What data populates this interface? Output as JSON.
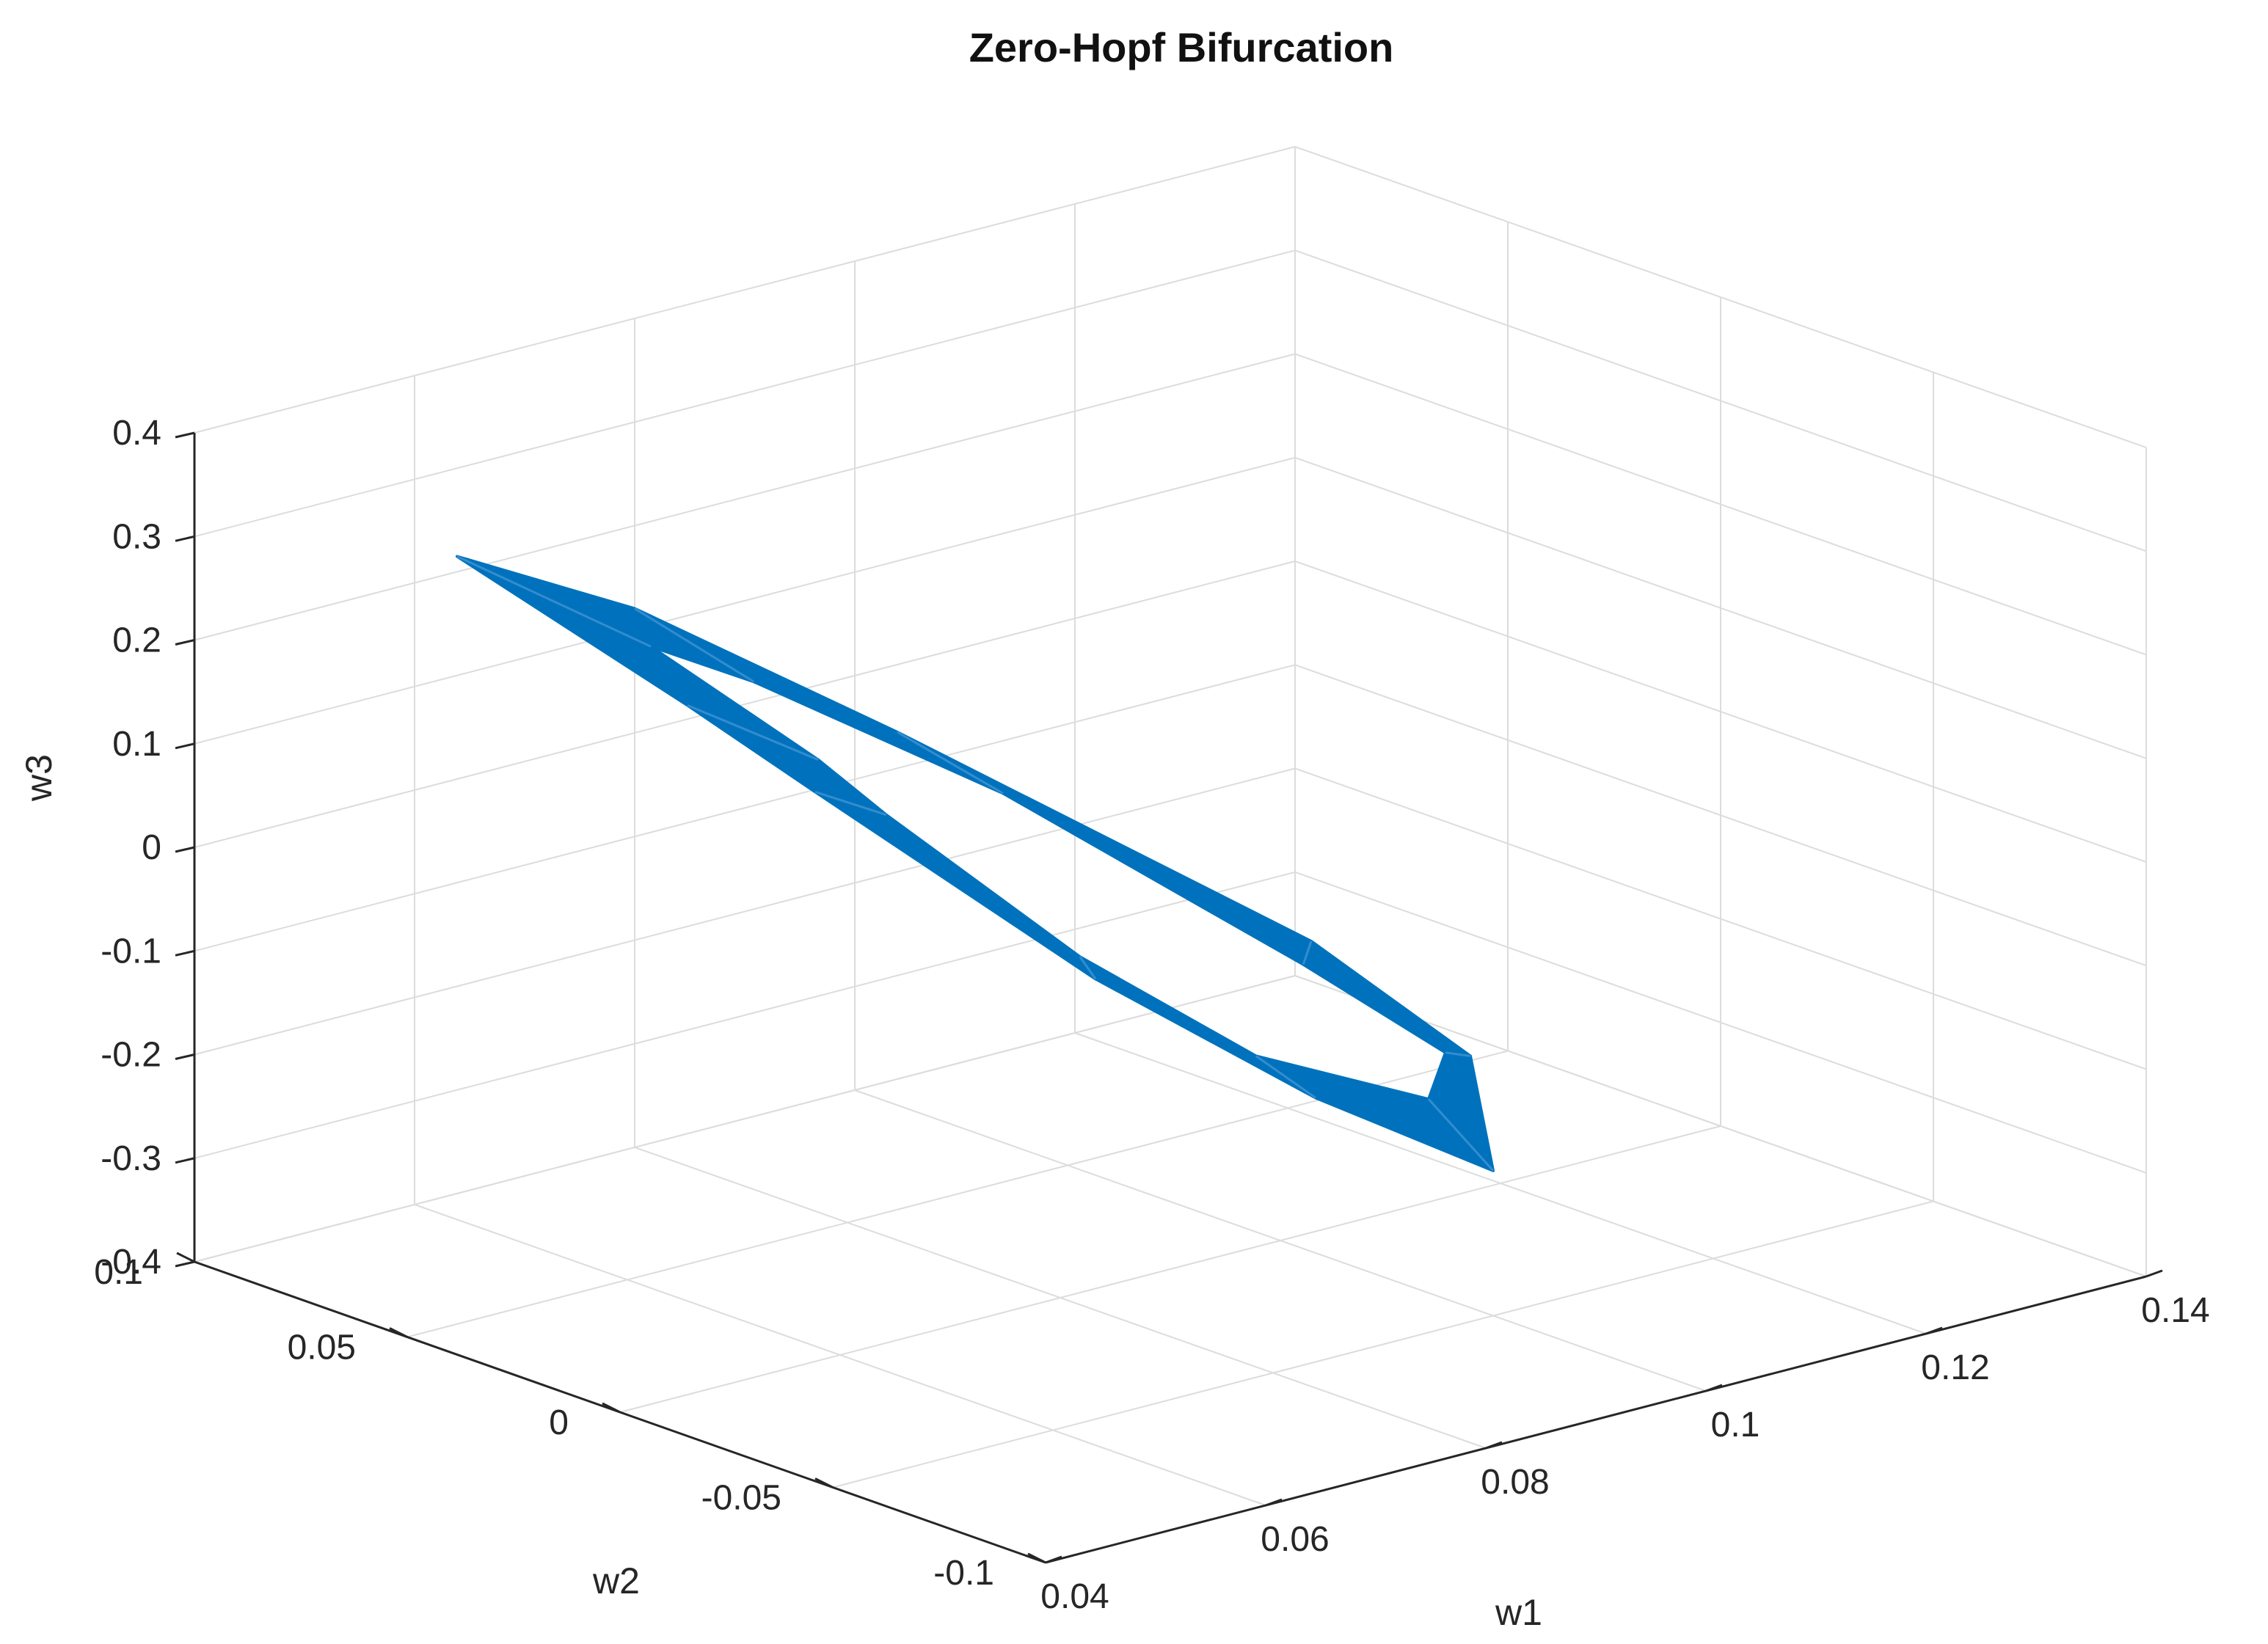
{
  "chart_data": {
    "type": "surface-3d",
    "title": "Zero-Hopf Bifurcation",
    "xlabel": "w1",
    "ylabel": "w2",
    "zlabel": "w3",
    "xlim": [
      0.04,
      0.14
    ],
    "ylim": [
      -0.1,
      0.1
    ],
    "zlim": [
      -0.4,
      0.4
    ],
    "xticks": [
      "0.04",
      "0.06",
      "0.08",
      "0.1",
      "0.12",
      "0.14"
    ],
    "yticks": [
      "-0.1",
      "-0.05",
      "0",
      "0.05",
      "0.1"
    ],
    "zticks": [
      "-0.4",
      "-0.3",
      "-0.2",
      "-0.1",
      "0",
      "0.1",
      "0.2",
      "0.3",
      "0.4"
    ],
    "grid": true,
    "surface_color": "#0072BD",
    "surface": {
      "shape": "band",
      "outer_ring": [
        [
          0.05,
          0.01,
          0.24
        ],
        [
          0.06,
          0.09,
          0.24
        ],
        [
          0.08,
          0.1,
          0.12
        ],
        [
          0.1,
          0.09,
          -0.04
        ],
        [
          0.126,
          0.06,
          -0.27
        ],
        [
          0.125,
          0.02,
          -0.32
        ],
        [
          0.1,
          -0.05,
          -0.26
        ],
        [
          0.08,
          -0.06,
          -0.12
        ],
        [
          0.06,
          -0.06,
          0.05
        ],
        [
          0.05,
          -0.02,
          0.2
        ]
      ],
      "inner_ring": [
        [
          0.058,
          0.0,
          0.18
        ],
        [
          0.066,
          0.06,
          0.18
        ],
        [
          0.08,
          0.072,
          0.09
        ],
        [
          0.098,
          0.06,
          -0.05
        ],
        [
          0.116,
          0.036,
          -0.23
        ],
        [
          0.115,
          0.0,
          -0.26
        ],
        [
          0.098,
          -0.04,
          -0.2
        ],
        [
          0.08,
          -0.046,
          -0.1
        ],
        [
          0.064,
          -0.046,
          0.04
        ],
        [
          0.058,
          -0.016,
          0.15
        ]
      ]
    }
  }
}
